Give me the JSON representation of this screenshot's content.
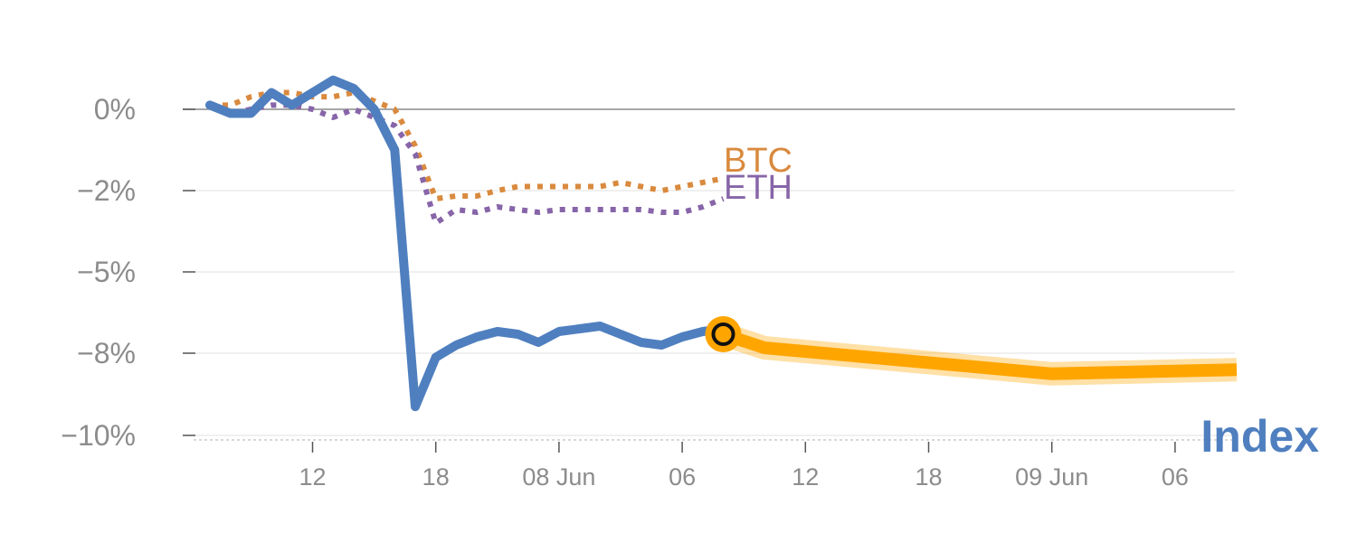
{
  "chart_data": {
    "type": "line",
    "title": "",
    "xlabel": "",
    "ylabel": "",
    "ylim": [
      -10.2,
      0.8
    ],
    "y_ticks": [
      {
        "value": 0,
        "label": "0%"
      },
      {
        "value": -2,
        "label": "−2%"
      },
      {
        "value": -5,
        "label": "−5%"
      },
      {
        "value": -8,
        "label": "−8%"
      },
      {
        "value": -10,
        "label": "−10%"
      }
    ],
    "x_ticks": [
      {
        "value": 12,
        "label": "12"
      },
      {
        "value": 18,
        "label": "18"
      },
      {
        "value": 24,
        "label": "08 Jun"
      },
      {
        "value": 30,
        "label": "06"
      },
      {
        "value": 36,
        "label": "12"
      },
      {
        "value": 42,
        "label": "18"
      },
      {
        "value": 48,
        "label": "09 Jun"
      },
      {
        "value": 54,
        "label": "06"
      }
    ],
    "grid": true,
    "series": [
      {
        "name": "BTC",
        "color": "#d98a3e",
        "style": "dotted",
        "x": [
          7,
          8,
          9,
          10,
          11,
          12,
          13,
          14,
          15,
          16,
          17,
          18,
          19,
          20,
          21,
          22,
          23,
          24,
          25,
          26,
          27,
          28,
          29,
          30,
          31,
          32
        ],
        "y": [
          0.1,
          0.1,
          0.3,
          0.4,
          0.4,
          0.3,
          0.3,
          0.4,
          0.2,
          0.0,
          -0.9,
          -2.3,
          -2.2,
          -2.2,
          -2.0,
          -1.9,
          -1.9,
          -1.9,
          -1.9,
          -1.9,
          -1.8,
          -1.9,
          -2.0,
          -1.9,
          -1.8,
          -1.7
        ]
      },
      {
        "name": "ETH",
        "color": "#8765a8",
        "style": "dotted",
        "x": [
          7,
          8,
          9,
          10,
          11,
          12,
          13,
          14,
          15,
          16,
          17,
          18,
          19,
          20,
          21,
          22,
          23,
          24,
          25,
          26,
          27,
          28,
          29,
          30,
          31,
          32
        ],
        "y": [
          0.1,
          -0.1,
          0.0,
          0.1,
          0.1,
          0.0,
          -0.2,
          0.0,
          -0.2,
          -0.4,
          -1.1,
          -3.2,
          -2.7,
          -2.8,
          -2.6,
          -2.7,
          -2.8,
          -2.7,
          -2.7,
          -2.7,
          -2.7,
          -2.7,
          -2.8,
          -2.8,
          -2.6,
          -2.3
        ]
      },
      {
        "name": "Index",
        "color": "#4f7fbf",
        "style": "solid",
        "x": [
          7,
          8,
          9,
          10,
          11,
          12,
          13,
          14,
          15,
          16,
          17,
          18,
          19,
          20,
          21,
          22,
          23,
          24,
          25,
          26,
          27,
          28,
          29,
          30,
          31,
          32
        ],
        "y": [
          0.1,
          -0.1,
          -0.1,
          0.4,
          0.1,
          0.4,
          0.7,
          0.5,
          0.0,
          -1.0,
          -9.3,
          -8.1,
          -7.7,
          -7.4,
          -7.2,
          -7.3,
          -7.6,
          -7.2,
          -7.1,
          -7.0,
          -7.3,
          -7.6,
          -7.7,
          -7.4,
          -7.2,
          -7.1
        ]
      },
      {
        "name": "Index forecast",
        "color": "#ffa500",
        "style": "band",
        "x": [
          32,
          34,
          48,
          57
        ],
        "y": [
          -7.3,
          -7.8,
          -8.5,
          -8.4
        ]
      }
    ],
    "current_point": {
      "x": 32,
      "y": -7.3,
      "color": "#ffa500"
    }
  },
  "labels": {
    "btc": "BTC",
    "eth": "ETH",
    "index": "Index"
  }
}
